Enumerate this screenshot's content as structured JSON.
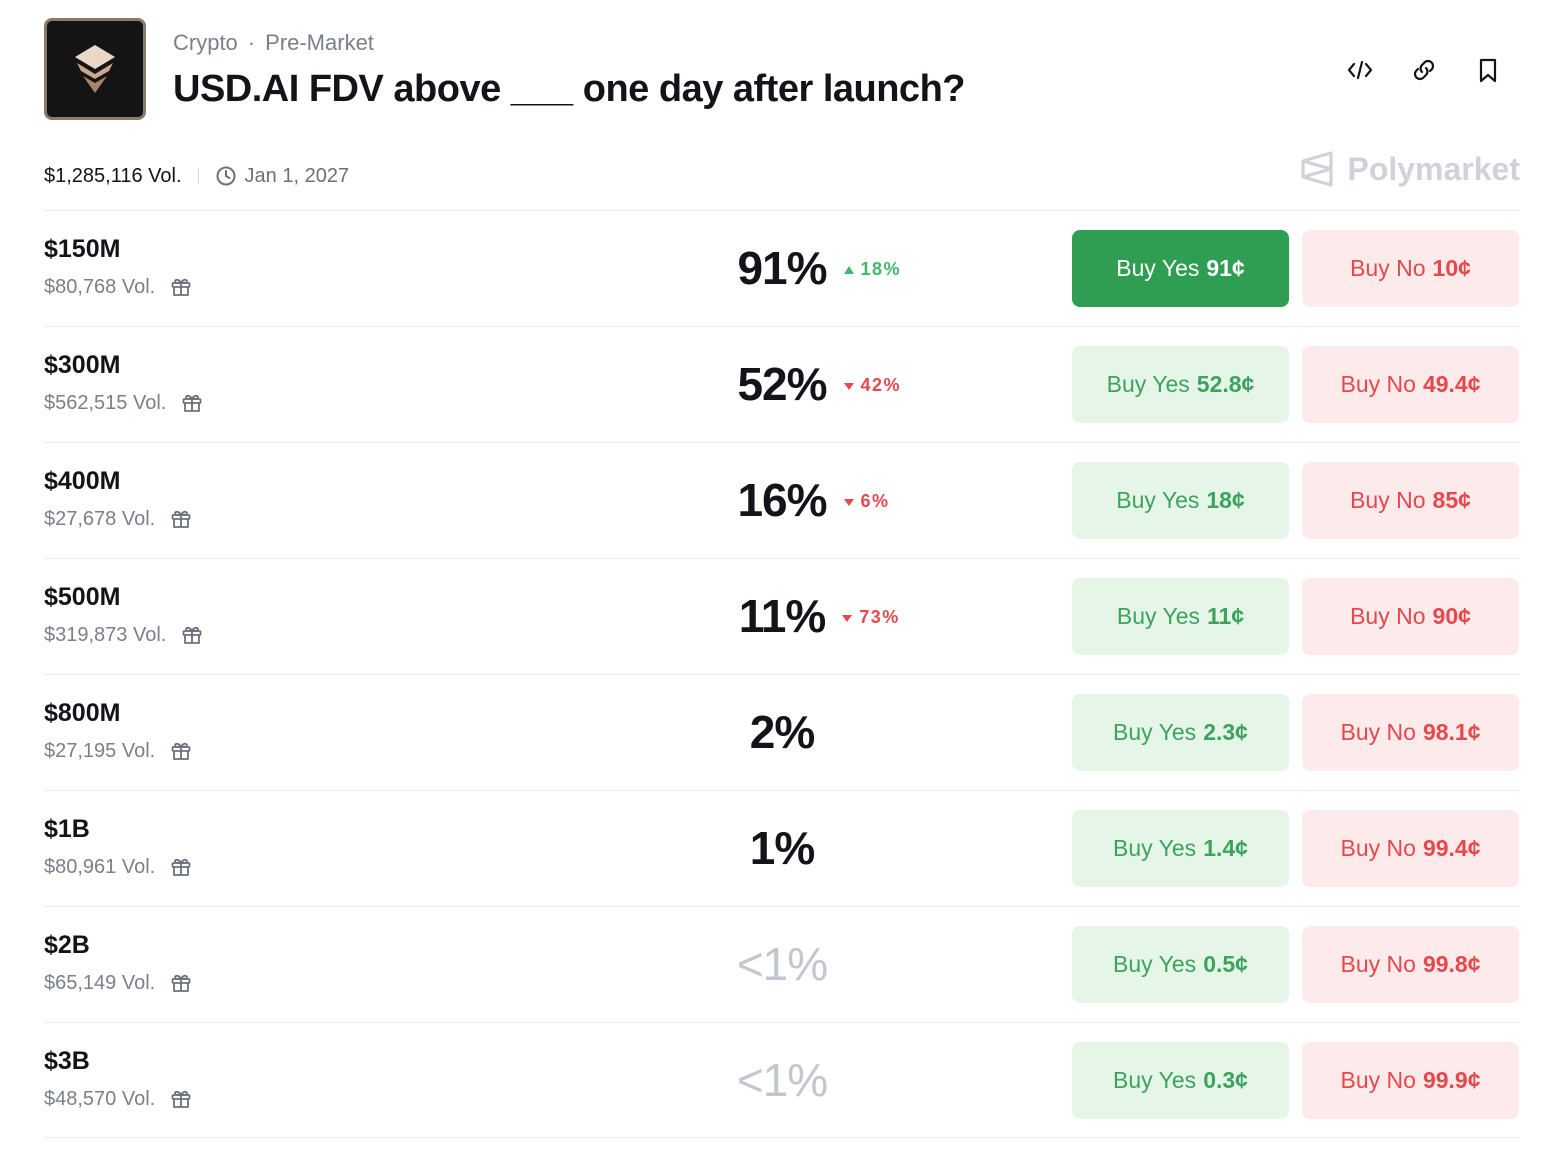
{
  "header": {
    "breadcrumbs": [
      "Crypto",
      "Pre-Market"
    ],
    "separator": "·",
    "title": "USD.AI FDV above ___ one day after launch?",
    "actions": [
      "embed-icon",
      "link-icon",
      "bookmark-icon"
    ]
  },
  "meta": {
    "total_volume": "$1,285,116 Vol.",
    "end_date": "Jan 1, 2027",
    "brand": "Polymarket"
  },
  "colors": {
    "yes": "#3da35c",
    "yes_active_bg": "#2f9e52",
    "no": "#e5484d",
    "up": "#3cb96a"
  },
  "outcomes": [
    {
      "label": "$150M",
      "volume": "$80,768 Vol.",
      "percent": "91%",
      "change": "18%",
      "direction": "up",
      "yes_label": "Buy Yes",
      "yes_price": "91¢",
      "no_label": "Buy No",
      "no_price": "10¢"
    },
    {
      "label": "$300M",
      "volume": "$562,515 Vol.",
      "percent": "52%",
      "change": "42%",
      "direction": "down",
      "yes_label": "Buy Yes",
      "yes_price": "52.8¢",
      "no_label": "Buy No",
      "no_price": "49.4¢"
    },
    {
      "label": "$400M",
      "volume": "$27,678 Vol.",
      "percent": "16%",
      "change": "6%",
      "direction": "down",
      "yes_label": "Buy Yes",
      "yes_price": "18¢",
      "no_label": "Buy No",
      "no_price": "85¢"
    },
    {
      "label": "$500M",
      "volume": "$319,873 Vol.",
      "percent": "11%",
      "change": "73%",
      "direction": "down",
      "yes_label": "Buy Yes",
      "yes_price": "11¢",
      "no_label": "Buy No",
      "no_price": "90¢"
    },
    {
      "label": "$800M",
      "volume": "$27,195 Vol.",
      "percent": "2%",
      "change": "",
      "direction": "",
      "yes_label": "Buy Yes",
      "yes_price": "2.3¢",
      "no_label": "Buy No",
      "no_price": "98.1¢"
    },
    {
      "label": "$1B",
      "volume": "$80,961 Vol.",
      "percent": "1%",
      "change": "",
      "direction": "",
      "yes_label": "Buy Yes",
      "yes_price": "1.4¢",
      "no_label": "Buy No",
      "no_price": "99.4¢"
    },
    {
      "label": "$2B",
      "volume": "$65,149 Vol.",
      "percent": "<1%",
      "change": "",
      "direction": "",
      "yes_label": "Buy Yes",
      "yes_price": "0.5¢",
      "no_label": "Buy No",
      "no_price": "99.8¢"
    },
    {
      "label": "$3B",
      "volume": "$48,570 Vol.",
      "percent": "<1%",
      "change": "",
      "direction": "",
      "yes_label": "Buy Yes",
      "yes_price": "0.3¢",
      "no_label": "Buy No",
      "no_price": "99.9¢"
    }
  ]
}
